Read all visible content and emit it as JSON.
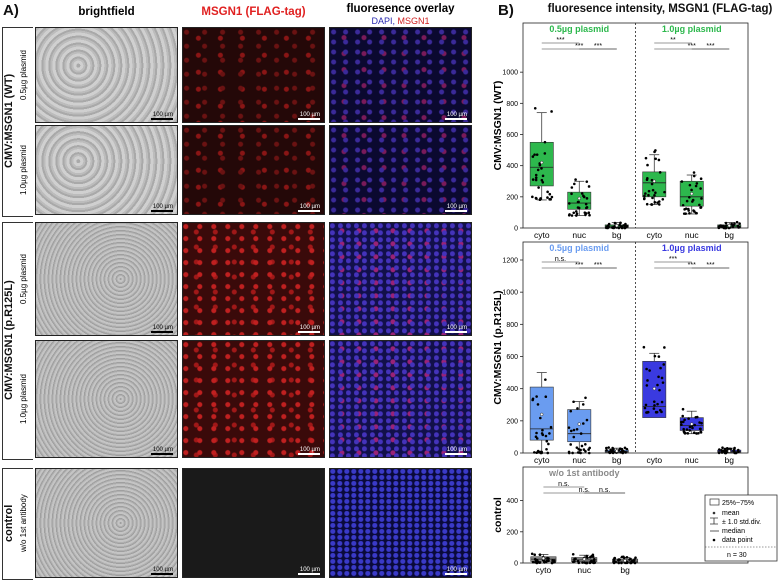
{
  "panelA": {
    "letter": "A)",
    "columns": [
      "brightfield",
      "MSGN1 (FLAG-tag)",
      "fluoresence overlay"
    ],
    "overlay_sub_dapi": "DAPI,",
    "overlay_sub_msgn1": "MSGN1",
    "groups": [
      {
        "label": "CMV:MSGN1 (WT)",
        "rows": [
          "0.5µg plasmid",
          "1.0µg plasmid"
        ]
      },
      {
        "label": "CMV:MSGN1 (p.R125L)",
        "rows": [
          "0.5µg plasmid",
          "1.0µg plasmid"
        ]
      },
      {
        "label": "control",
        "rows": [
          "w/o 1st antibody"
        ]
      }
    ],
    "scalebar": "100 µm"
  },
  "panelB": {
    "letter": "B)",
    "title": "fluoresence intensity, MSGN1 (FLAG-tag)",
    "legend": {
      "box": "25%~75%",
      "mean": "mean",
      "sd": "± 1.0 std.div.",
      "median": "median",
      "point": "data point",
      "n": "n = 30"
    },
    "colors": {
      "wt": "#2db84d",
      "r125l_05": "#6a9cf0",
      "r125l_10": "#3a3ae0",
      "control": "#8a8a8a"
    }
  },
  "chart_data": [
    {
      "type": "box",
      "ylabel": "CMV:MSGN1 (WT)",
      "ylim": [
        0,
        1200
      ],
      "yticks": [
        0,
        200,
        400,
        600,
        800,
        1000
      ],
      "panels": [
        {
          "title": "0.5µg plasmid",
          "categories": [
            "cyto",
            "nuc",
            "bg"
          ],
          "boxes": [
            {
              "q1": 270,
              "median": 390,
              "q3": 550,
              "mean": 420,
              "sd": [
                180,
                740
              ]
            },
            {
              "q1": 120,
              "median": 160,
              "q3": 230,
              "mean": 190,
              "sd": [
                80,
                300
              ]
            },
            {
              "q1": 5,
              "median": 12,
              "q3": 20,
              "mean": 15,
              "sd": [
                0,
                35
              ]
            }
          ],
          "sig": [
            {
              "label": "***",
              "pair": [
                "cyto",
                "nuc"
              ]
            },
            {
              "label": "***",
              "pair": [
                "cyto",
                "bg"
              ]
            },
            {
              "label": "***",
              "pair": [
                "nuc",
                "bg"
              ]
            }
          ]
        },
        {
          "title": "1.0µg plasmid",
          "categories": [
            "cyto",
            "nuc",
            "bg"
          ],
          "boxes": [
            {
              "q1": 200,
              "median": 290,
              "q3": 360,
              "mean": 300,
              "sd": [
                150,
                470
              ]
            },
            {
              "q1": 140,
              "median": 200,
              "q3": 300,
              "mean": 220,
              "sd": [
                90,
                340
              ]
            },
            {
              "q1": 5,
              "median": 12,
              "q3": 20,
              "mean": 15,
              "sd": [
                0,
                35
              ]
            }
          ],
          "sig": [
            {
              "label": "**",
              "pair": [
                "cyto",
                "nuc"
              ]
            },
            {
              "label": "***",
              "pair": [
                "cyto",
                "bg"
              ]
            },
            {
              "label": "***",
              "pair": [
                "nuc",
                "bg"
              ]
            }
          ]
        }
      ]
    },
    {
      "type": "box",
      "ylabel": "CMV:MSGN1 (p.R125L)",
      "ylim": [
        0,
        1200
      ],
      "yticks": [
        0,
        200,
        400,
        600,
        800,
        1000,
        1200
      ],
      "panels": [
        {
          "title": "0.5µg plasmid",
          "categories": [
            "cyto",
            "nuc",
            "bg"
          ],
          "boxes": [
            {
              "q1": 80,
              "median": 150,
              "q3": 410,
              "mean": 240,
              "sd": [
                0,
                500
              ]
            },
            {
              "q1": 70,
              "median": 120,
              "q3": 270,
              "mean": 180,
              "sd": [
                0,
                320
              ]
            },
            {
              "q1": 5,
              "median": 10,
              "q3": 18,
              "mean": 12,
              "sd": [
                0,
                30
              ]
            }
          ],
          "sig": [
            {
              "label": "n.s.",
              "pair": [
                "cyto",
                "nuc"
              ]
            },
            {
              "label": "***",
              "pair": [
                "cyto",
                "bg"
              ]
            },
            {
              "label": "***",
              "pair": [
                "nuc",
                "bg"
              ]
            }
          ]
        },
        {
          "title": "1.0µg plasmid",
          "categories": [
            "cyto",
            "nuc",
            "bg"
          ],
          "boxes": [
            {
              "q1": 220,
              "median": 290,
              "q3": 570,
              "mean": 400,
              "sd": [
                250,
                620
              ]
            },
            {
              "q1": 140,
              "median": 170,
              "q3": 220,
              "mean": 180,
              "sd": [
                120,
                260
              ]
            },
            {
              "q1": 5,
              "median": 10,
              "q3": 18,
              "mean": 12,
              "sd": [
                0,
                30
              ]
            }
          ],
          "sig": [
            {
              "label": "***",
              "pair": [
                "cyto",
                "nuc"
              ]
            },
            {
              "label": "***",
              "pair": [
                "cyto",
                "bg"
              ]
            },
            {
              "label": "***",
              "pair": [
                "nuc",
                "bg"
              ]
            }
          ]
        }
      ]
    },
    {
      "type": "box",
      "ylabel": "control",
      "ylim": [
        0,
        500
      ],
      "yticks": [
        0,
        200,
        400
      ],
      "panels": [
        {
          "title": "w/o 1st antibody",
          "categories": [
            "cyto",
            "nuc",
            "bg"
          ],
          "boxes": [
            {
              "q1": 10,
              "median": 25,
              "q3": 40,
              "mean": 30,
              "sd": [
                0,
                55
              ]
            },
            {
              "q1": 8,
              "median": 20,
              "q3": 35,
              "mean": 25,
              "sd": [
                0,
                50
              ]
            },
            {
              "q1": 5,
              "median": 12,
              "q3": 25,
              "mean": 15,
              "sd": [
                0,
                35
              ]
            }
          ],
          "sig": [
            {
              "label": "n.s.",
              "pair": [
                "cyto",
                "nuc"
              ]
            },
            {
              "label": "n.s.",
              "pair": [
                "cyto",
                "bg"
              ]
            },
            {
              "label": "n.s.",
              "pair": [
                "nuc",
                "bg"
              ]
            }
          ]
        }
      ]
    }
  ]
}
